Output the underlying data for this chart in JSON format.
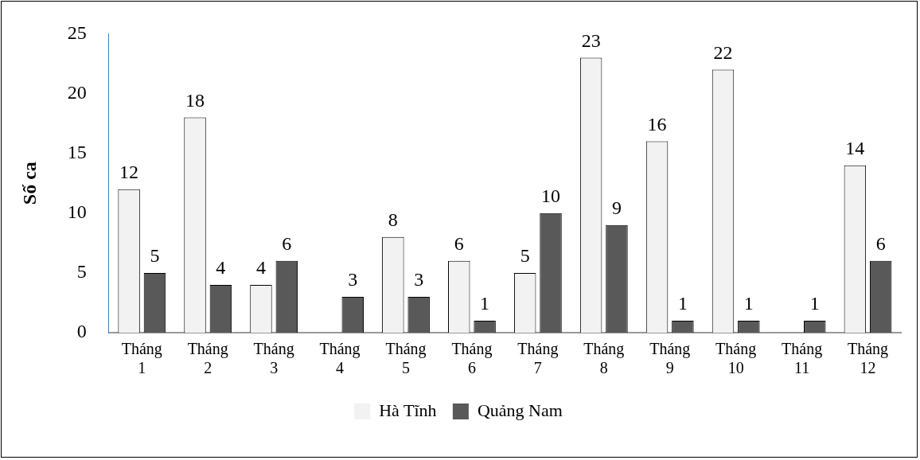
{
  "chart_data": {
    "type": "bar",
    "ylabel": "Số ca",
    "categories": [
      "Tháng 1",
      "Tháng 2",
      "Tháng 3",
      "Tháng 4",
      "Tháng 5",
      "Tháng 6",
      "Tháng 7",
      "Tháng 8",
      "Tháng 9",
      "Tháng 10",
      "Tháng 11",
      "Tháng 12"
    ],
    "series": [
      {
        "name": "Hà Tĩnh",
        "color": "#f2f2f2",
        "values": [
          12,
          18,
          4,
          null,
          8,
          6,
          5,
          23,
          16,
          22,
          null,
          14
        ]
      },
      {
        "name": "Quảng Nam",
        "color": "#595959",
        "values": [
          5,
          4,
          6,
          3,
          3,
          1,
          10,
          9,
          1,
          1,
          1,
          6
        ]
      }
    ],
    "ylim": [
      0,
      25
    ],
    "yticks": [
      0,
      5,
      10,
      15,
      20,
      25
    ],
    "grid": false,
    "legend": "bottom",
    "data_labels": true
  }
}
